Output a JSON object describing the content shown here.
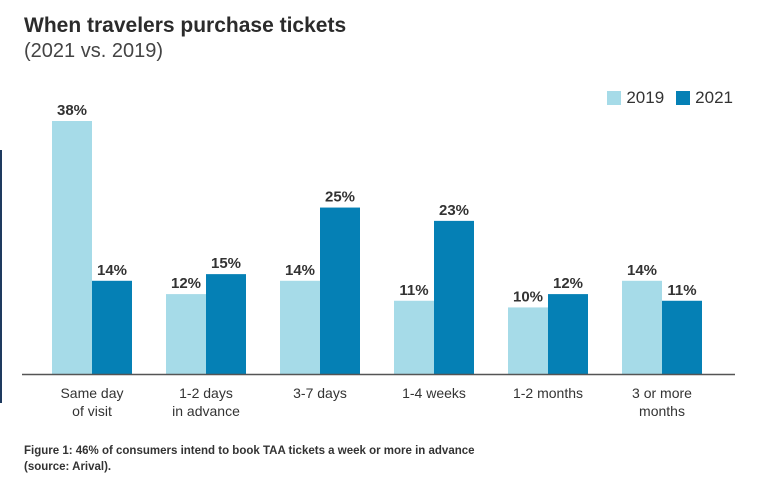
{
  "header": {
    "title": "When travelers purchase tickets",
    "subtitle": "(2021 vs. 2019)"
  },
  "caption": {
    "line1": "Figure 1: 46% of consumers intend to book TAA tickets a week or more in advance",
    "line2": "(source: Arival)."
  },
  "colors": {
    "s2019": "#a6dbe8",
    "s2021": "#0580b5",
    "axis": "#555555"
  },
  "chart_data": {
    "type": "bar",
    "title": "When travelers purchase tickets",
    "subtitle": "(2021 vs. 2019)",
    "categories": [
      [
        "Same day",
        "of visit"
      ],
      [
        "1-2 days",
        "in advance"
      ],
      [
        "3-7 days"
      ],
      [
        "1-4 weeks"
      ],
      [
        "1-2 months"
      ],
      [
        "3 or more",
        "months"
      ]
    ],
    "series": [
      {
        "name": "2019",
        "values": [
          38,
          12,
          14,
          11,
          10,
          14
        ]
      },
      {
        "name": "2021",
        "values": [
          14,
          15,
          25,
          23,
          12,
          11
        ]
      }
    ],
    "value_suffix": "%",
    "ylim": [
      0,
      38
    ],
    "legend_position": "top-right",
    "grid": false,
    "xlabel": "",
    "ylabel": ""
  }
}
